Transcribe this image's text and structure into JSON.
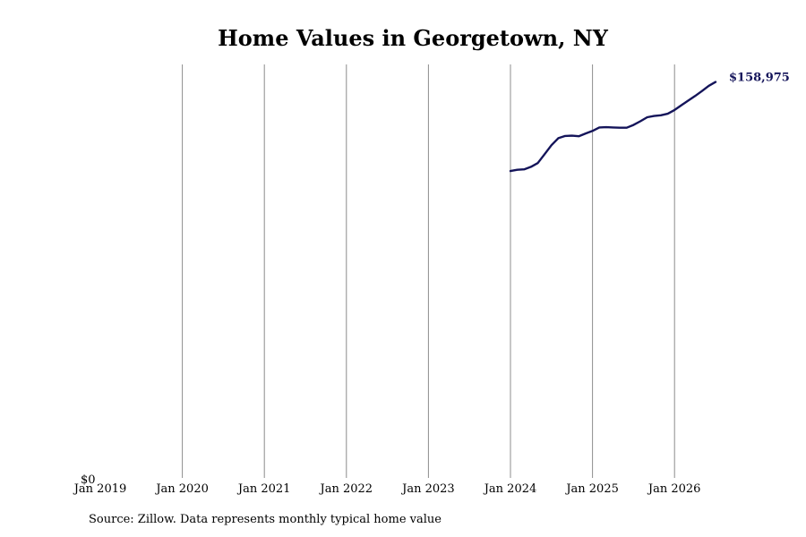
{
  "chart_data": {
    "type": "line",
    "title": "Home Values in Georgetown, NY",
    "xlabel": "",
    "ylabel": "",
    "y_tick_label": "$0",
    "ylim": [
      0,
      166000
    ],
    "x_tick_labels": [
      "Jan 2019",
      "Jan 2020",
      "Jan 2021",
      "Jan 2022",
      "Jan 2023",
      "Jan 2024",
      "Jan 2025",
      "Jan 2026"
    ],
    "grid": "vertical",
    "line_color": "#14145a",
    "end_label": "$158,975",
    "series": [
      {
        "x": [
          "2024-01",
          "2024-02",
          "2024-03",
          "2024-04",
          "2024-05",
          "2024-06",
          "2024-07",
          "2024-08",
          "2024-09",
          "2024-10",
          "2024-11",
          "2024-12",
          "2025-01",
          "2025-02",
          "2025-03",
          "2025-04",
          "2025-05",
          "2025-06",
          "2025-07",
          "2025-08",
          "2025-09",
          "2025-10",
          "2025-11",
          "2025-12",
          "2026-01",
          "2026-02",
          "2026-03",
          "2026-04",
          "2026-05",
          "2026-06",
          "2026-07"
        ],
        "values": [
          123200,
          123700,
          123900,
          124900,
          126400,
          130000,
          133600,
          136400,
          137300,
          137400,
          137200,
          138300,
          139300,
          140700,
          140800,
          140700,
          140600,
          140600,
          141700,
          143200,
          144800,
          145300,
          145600,
          146200,
          147700,
          149600,
          151500,
          153300,
          155300,
          157400,
          158975
        ]
      }
    ],
    "source": "Source: Zillow. Data represents monthly typical home value"
  }
}
